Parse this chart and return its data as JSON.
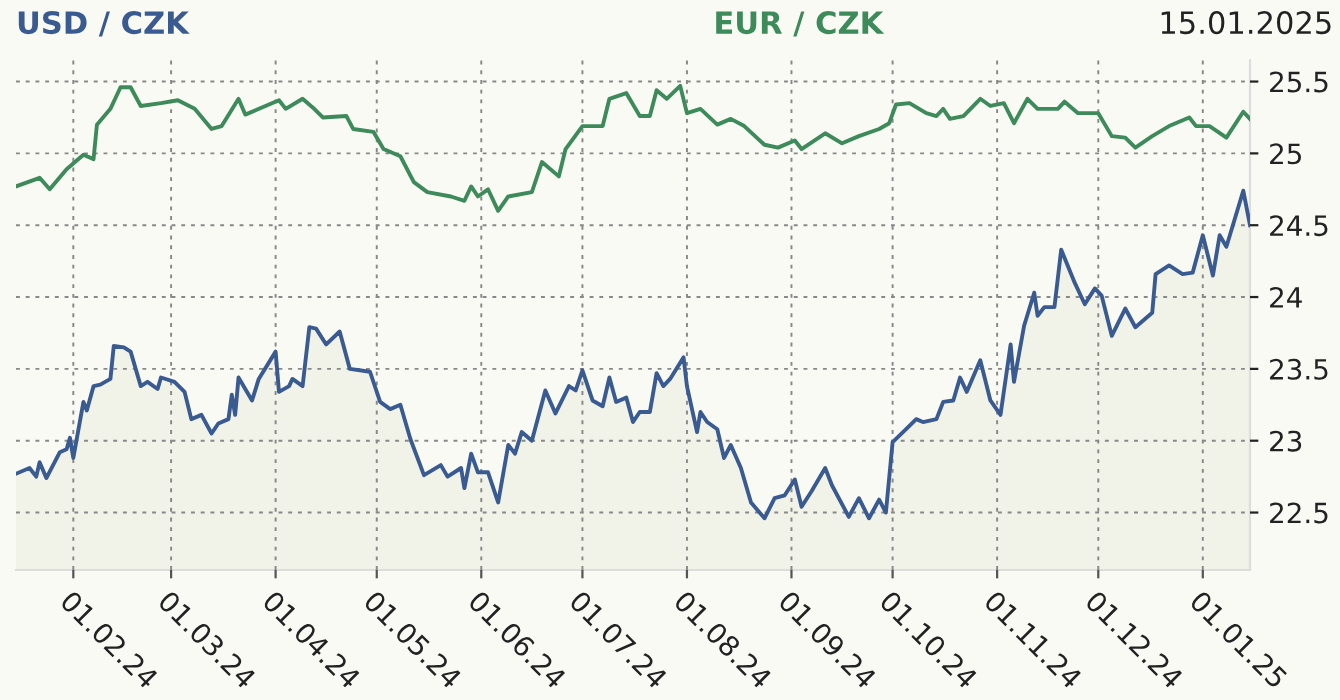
{
  "chart_data": {
    "type": "line",
    "title": "15.01.2025",
    "xlim": [
      "2024-01-15",
      "2025-01-15"
    ],
    "ylim": [
      22.1,
      25.65
    ],
    "xticks": [
      {
        "value": "2024-02-01",
        "label": "01.02.24"
      },
      {
        "value": "2024-03-01",
        "label": "01.03.24"
      },
      {
        "value": "2024-04-01",
        "label": "01.04.24"
      },
      {
        "value": "2024-05-01",
        "label": "01.05.24"
      },
      {
        "value": "2024-06-01",
        "label": "01.06.24"
      },
      {
        "value": "2024-07-01",
        "label": "01.07.24"
      },
      {
        "value": "2024-08-01",
        "label": "01.08.24"
      },
      {
        "value": "2024-09-01",
        "label": "01.09.24"
      },
      {
        "value": "2024-10-01",
        "label": "01.10.24"
      },
      {
        "value": "2024-11-01",
        "label": "01.11.24"
      },
      {
        "value": "2024-12-01",
        "label": "01.12.24"
      },
      {
        "value": "2025-01-01",
        "label": "01.01.25"
      }
    ],
    "yticks": [
      22.5,
      23,
      23.5,
      24,
      24.5,
      25,
      25.5
    ],
    "grid": true,
    "line_style": "solid",
    "series": [
      {
        "name": "USD / CZK",
        "type": "area",
        "color": "#3a5a92",
        "x": [
          "2024-01-15",
          "2024-01-19",
          "2024-01-21",
          "2024-01-22",
          "2024-01-24",
          "2024-01-28",
          "2024-01-30",
          "2024-01-31",
          "2024-02-01",
          "2024-02-04",
          "2024-02-05",
          "2024-02-07",
          "2024-02-09",
          "2024-02-12",
          "2024-02-13",
          "2024-02-16",
          "2024-02-18",
          "2024-02-21",
          "2024-02-23",
          "2024-02-26",
          "2024-02-27",
          "2024-03-02",
          "2024-03-05",
          "2024-03-07",
          "2024-03-10",
          "2024-03-13",
          "2024-03-15",
          "2024-03-18",
          "2024-03-19",
          "2024-03-20",
          "2024-03-21",
          "2024-03-25",
          "2024-03-27",
          "2024-04-01",
          "2024-04-02",
          "2024-04-05",
          "2024-04-06",
          "2024-04-09",
          "2024-04-11",
          "2024-04-13",
          "2024-04-16",
          "2024-04-20",
          "2024-04-23",
          "2024-04-29",
          "2024-05-02",
          "2024-05-05",
          "2024-05-08",
          "2024-05-11",
          "2024-05-15",
          "2024-05-20",
          "2024-05-22",
          "2024-05-26",
          "2024-05-27",
          "2024-05-29",
          "2024-05-31",
          "2024-06-03",
          "2024-06-06",
          "2024-06-09",
          "2024-06-11",
          "2024-06-13",
          "2024-06-16",
          "2024-06-20",
          "2024-06-23",
          "2024-06-27",
          "2024-06-29",
          "2024-07-01",
          "2024-07-04",
          "2024-07-07",
          "2024-07-09",
          "2024-07-11",
          "2024-07-14",
          "2024-07-16",
          "2024-07-18",
          "2024-07-21",
          "2024-07-23",
          "2024-07-25",
          "2024-07-27",
          "2024-07-31",
          "2024-08-01",
          "2024-08-04",
          "2024-08-05",
          "2024-08-07",
          "2024-08-10",
          "2024-08-12",
          "2024-08-14",
          "2024-08-17",
          "2024-08-20",
          "2024-08-24",
          "2024-08-27",
          "2024-08-30",
          "2024-09-02",
          "2024-09-04",
          "2024-09-07",
          "2024-09-11",
          "2024-09-13",
          "2024-09-18",
          "2024-09-21",
          "2024-09-24",
          "2024-09-27",
          "2024-09-29",
          "2024-10-01",
          "2024-10-05",
          "2024-10-08",
          "2024-10-10",
          "2024-10-14",
          "2024-10-16",
          "2024-10-19",
          "2024-10-21",
          "2024-10-23",
          "2024-10-27",
          "2024-10-30",
          "2024-11-02",
          "2024-11-05",
          "2024-11-06",
          "2024-11-09",
          "2024-11-12",
          "2024-11-13",
          "2024-11-15",
          "2024-11-18",
          "2024-11-20",
          "2024-11-24",
          "2024-11-27",
          "2024-11-30",
          "2024-12-02",
          "2024-12-05",
          "2024-12-09",
          "2024-12-12",
          "2024-12-17",
          "2024-12-18",
          "2024-12-22",
          "2024-12-26",
          "2024-12-29",
          "2025-01-01",
          "2025-01-04",
          "2025-01-06",
          "2025-01-08",
          "2025-01-13",
          "2025-01-15"
        ],
        "values": [
          22.77,
          22.81,
          22.75,
          22.85,
          22.74,
          22.92,
          22.94,
          23.02,
          22.88,
          23.27,
          23.21,
          23.38,
          23.39,
          23.43,
          23.66,
          23.65,
          23.62,
          23.38,
          23.41,
          23.36,
          23.44,
          23.41,
          23.34,
          23.15,
          23.18,
          23.05,
          23.12,
          23.15,
          23.32,
          23.18,
          23.44,
          23.28,
          23.43,
          23.62,
          23.34,
          23.38,
          23.43,
          23.38,
          23.79,
          23.78,
          23.67,
          23.76,
          23.5,
          23.48,
          23.27,
          23.22,
          23.25,
          23.01,
          22.76,
          22.83,
          22.75,
          22.81,
          22.67,
          22.91,
          22.78,
          22.78,
          22.57,
          22.97,
          22.91,
          23.06,
          23.0,
          23.35,
          23.19,
          23.38,
          23.35,
          23.49,
          23.28,
          23.24,
          23.44,
          23.27,
          23.3,
          23.13,
          23.2,
          23.2,
          23.47,
          23.38,
          23.43,
          23.58,
          23.38,
          23.06,
          23.2,
          23.13,
          23.08,
          22.88,
          22.97,
          22.81,
          22.57,
          22.46,
          22.6,
          22.62,
          22.73,
          22.54,
          22.65,
          22.81,
          22.69,
          22.47,
          22.6,
          22.46,
          22.59,
          22.5,
          22.99,
          23.08,
          23.15,
          23.13,
          23.15,
          23.27,
          23.28,
          23.44,
          23.34,
          23.56,
          23.28,
          23.18,
          23.67,
          23.41,
          23.8,
          24.03,
          23.87,
          23.93,
          23.93,
          24.33,
          24.1,
          23.95,
          24.06,
          24.01,
          23.73,
          23.92,
          23.79,
          23.89,
          24.16,
          24.22,
          24.16,
          24.17,
          24.43,
          24.15,
          24.43,
          24.35,
          24.74,
          24.5
        ]
      },
      {
        "name": "EUR / CZK",
        "color": "#3d8a5a",
        "x": [
          "2024-01-15",
          "2024-01-22",
          "2024-01-25",
          "2024-01-30",
          "2024-02-04",
          "2024-02-07",
          "2024-02-08",
          "2024-02-12",
          "2024-02-15",
          "2024-02-18",
          "2024-02-21",
          "2024-02-27",
          "2024-03-03",
          "2024-03-08",
          "2024-03-13",
          "2024-03-16",
          "2024-03-21",
          "2024-03-23",
          "2024-04-02",
          "2024-04-04",
          "2024-04-09",
          "2024-04-12",
          "2024-04-15",
          "2024-04-22",
          "2024-04-24",
          "2024-04-30",
          "2024-05-03",
          "2024-05-08",
          "2024-05-12",
          "2024-05-16",
          "2024-05-23",
          "2024-05-27",
          "2024-05-29",
          "2024-05-31",
          "2024-06-03",
          "2024-06-06",
          "2024-06-09",
          "2024-06-16",
          "2024-06-19",
          "2024-06-24",
          "2024-06-26",
          "2024-07-01",
          "2024-07-07",
          "2024-07-09",
          "2024-07-14",
          "2024-07-18",
          "2024-07-21",
          "2024-07-23",
          "2024-07-26",
          "2024-07-30",
          "2024-08-01",
          "2024-08-05",
          "2024-08-10",
          "2024-08-14",
          "2024-08-18",
          "2024-08-24",
          "2024-08-28",
          "2024-09-02",
          "2024-09-04",
          "2024-09-11",
          "2024-09-16",
          "2024-09-21",
          "2024-09-27",
          "2024-09-30",
          "2024-10-02",
          "2024-10-06",
          "2024-10-11",
          "2024-10-14",
          "2024-10-16",
          "2024-10-18",
          "2024-10-22",
          "2024-10-27",
          "2024-10-30",
          "2024-11-03",
          "2024-11-06",
          "2024-11-10",
          "2024-11-13",
          "2024-11-19",
          "2024-11-21",
          "2024-11-25",
          "2024-12-01",
          "2024-12-05",
          "2024-12-09",
          "2024-12-12",
          "2024-12-17",
          "2024-12-22",
          "2024-12-28",
          "2024-12-30",
          "2025-01-03",
          "2025-01-08",
          "2025-01-13",
          "2025-01-15"
        ],
        "values": [
          24.77,
          24.83,
          24.75,
          24.89,
          24.99,
          24.96,
          25.2,
          25.31,
          25.46,
          25.46,
          25.33,
          25.35,
          25.37,
          25.31,
          25.17,
          25.19,
          25.38,
          25.27,
          25.37,
          25.31,
          25.38,
          25.32,
          25.25,
          25.26,
          25.17,
          25.15,
          25.03,
          24.98,
          24.8,
          24.73,
          24.7,
          24.67,
          24.77,
          24.7,
          24.75,
          24.6,
          24.7,
          24.73,
          24.94,
          24.84,
          25.03,
          25.19,
          25.19,
          25.38,
          25.42,
          25.26,
          25.26,
          25.44,
          25.38,
          25.47,
          25.28,
          25.31,
          25.2,
          25.24,
          25.19,
          25.06,
          25.04,
          25.09,
          25.03,
          25.14,
          25.07,
          25.12,
          25.17,
          25.21,
          25.34,
          25.35,
          25.28,
          25.26,
          25.31,
          25.24,
          25.26,
          25.38,
          25.33,
          25.35,
          25.21,
          25.38,
          25.31,
          25.31,
          25.36,
          25.28,
          25.28,
          25.12,
          25.11,
          25.04,
          25.12,
          25.19,
          25.25,
          25.19,
          25.19,
          25.11,
          25.29,
          25.24
        ]
      }
    ]
  }
}
